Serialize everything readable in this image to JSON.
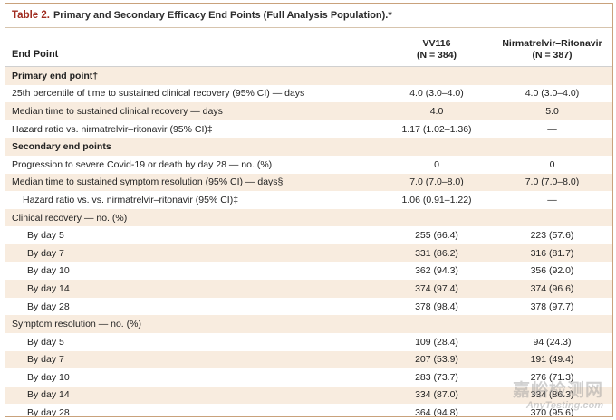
{
  "table": {
    "label": "Table 2.",
    "title": "Primary and Secondary Efficacy End Points (Full Analysis Population).*",
    "headers": {
      "endpoint": "End Point",
      "col1_name": "VV116",
      "col1_n": "(N = 384)",
      "col2_name": "Nirmatrelvir–Ritonavir",
      "col2_n": "(N = 387)"
    },
    "rows": [
      {
        "label": "Primary end point†",
        "v1": "",
        "v2": "",
        "style": "section",
        "shade": true
      },
      {
        "label": "25th percentile of time to sustained clinical recovery (95% CI) — days",
        "v1": "4.0 (3.0–4.0)",
        "v2": "4.0 (3.0–4.0)",
        "style": "",
        "shade": false
      },
      {
        "label": "Median time to sustained clinical recovery — days",
        "v1": "4.0",
        "v2": "5.0",
        "style": "",
        "shade": true
      },
      {
        "label": "Hazard ratio vs. nirmatrelvir–ritonavir (95% CI)‡",
        "v1": "1.17 (1.02–1.36)",
        "v2": "—",
        "style": "",
        "shade": false
      },
      {
        "label": "Secondary end points",
        "v1": "",
        "v2": "",
        "style": "section",
        "shade": true
      },
      {
        "label": "Progression to severe Covid-19 or death by day 28 — no. (%)",
        "v1": "0",
        "v2": "0",
        "style": "",
        "shade": false
      },
      {
        "label": "Median time to sustained symptom resolution (95% CI) — days§",
        "v1": "7.0 (7.0–8.0)",
        "v2": "7.0 (7.0–8.0)",
        "style": "",
        "shade": true
      },
      {
        "label": "Hazard ratio vs. vs. nirmatrelvir–ritonavir (95% CI)‡",
        "v1": "1.06 (0.91–1.22)",
        "v2": "—",
        "style": "indent1",
        "shade": false
      },
      {
        "label": "Clinical recovery — no. (%)",
        "v1": "",
        "v2": "",
        "style": "",
        "shade": true
      },
      {
        "label": "By day 5",
        "v1": "255 (66.4)",
        "v2": "223 (57.6)",
        "style": "indent2",
        "shade": false
      },
      {
        "label": "By day 7",
        "v1": "331 (86.2)",
        "v2": "316 (81.7)",
        "style": "indent2",
        "shade": true
      },
      {
        "label": "By day 10",
        "v1": "362 (94.3)",
        "v2": "356 (92.0)",
        "style": "indent2",
        "shade": false
      },
      {
        "label": "By day 14",
        "v1": "374 (97.4)",
        "v2": "374 (96.6)",
        "style": "indent2",
        "shade": true
      },
      {
        "label": "By day 28",
        "v1": "378 (98.4)",
        "v2": "378 (97.7)",
        "style": "indent2",
        "shade": false
      },
      {
        "label": "Symptom resolution — no. (%)",
        "v1": "",
        "v2": "",
        "style": "",
        "shade": true
      },
      {
        "label": "By day 5",
        "v1": "109 (28.4)",
        "v2": "94 (24.3)",
        "style": "indent2",
        "shade": false
      },
      {
        "label": "By day 7",
        "v1": "207 (53.9)",
        "v2": "191 (49.4)",
        "style": "indent2",
        "shade": true
      },
      {
        "label": "By day 10",
        "v1": "283 (73.7)",
        "v2": "276 (71.3)",
        "style": "indent2",
        "shade": false
      },
      {
        "label": "By day 14",
        "v1": "334 (87.0)",
        "v2": "334 (86.3)",
        "style": "indent2",
        "shade": true
      },
      {
        "label": "By day 28",
        "v1": "364 (94.8)",
        "v2": "370 (95.6)",
        "style": "indent2",
        "shade": false
      }
    ]
  },
  "watermark": {
    "cn": "嘉峪检测网",
    "en": "AnyTesting.com"
  },
  "colors": {
    "label_red": "#a02b1f",
    "row_shade": "#f8ecdf",
    "border": "#c9a27c"
  }
}
